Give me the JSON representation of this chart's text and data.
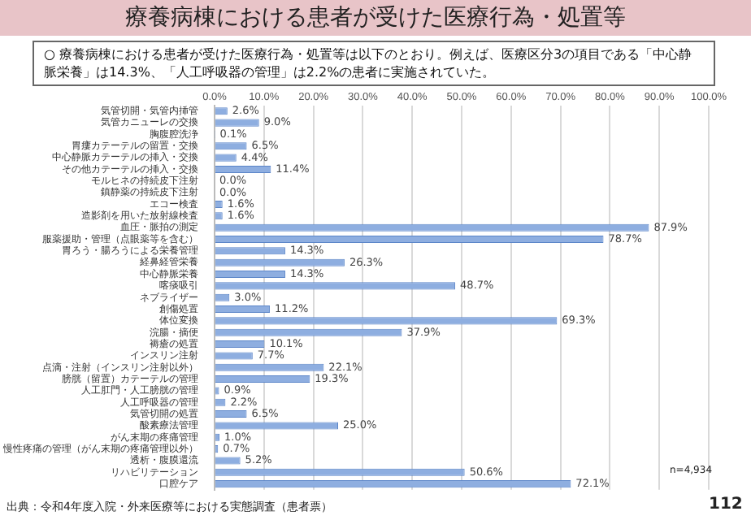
{
  "chart_data": {
    "type": "bar",
    "orientation": "horizontal",
    "title": "療養病棟における患者が受けた医療行為・処置等",
    "subtitle": "○ 療養病棟における患者が受けた医療行為・処置等は以下のとおり。例えば、医療区分3の項目である「中心静脈栄養」は14.3%、「人工呼吸器の管理」は2.2%の患者に実施されていた。",
    "categories": [
      "気管切開・気管内挿管",
      "気管カニューレの交換",
      "胸腹腔洗浄",
      "胃瘻カテーテルの留置・交換",
      "中心静脈カテーテルの挿入・交換",
      "その他カテーテルの挿入・交換",
      "モルヒネの持続皮下注射",
      "鎮静薬の持続皮下注射",
      "エコー検査",
      "造影剤を用いた放射線検査",
      "血圧・脈拍の測定",
      "服薬援助・管理（点眼薬等を含む）",
      "胃ろう・腸ろうによる栄養管理",
      "経鼻経管栄養",
      "中心静脈栄養",
      "喀痰吸引",
      "ネブライザー",
      "創傷処置",
      "体位変換",
      "浣腸・摘便",
      "褥瘡の処置",
      "インスリン注射",
      "点滴・注射（インスリン注射以外）",
      "膀胱（留置）カテーテルの管理",
      "人工肛門・人工膀胱の管理",
      "人工呼吸器の管理",
      "気管切開の処置",
      "酸素療法管理",
      "がん末期の疼痛管理",
      "慢性疼痛の管理（がん末期の疼痛管理以外）",
      "透析・腹膜還流",
      "リハビリテーション",
      "口腔ケア"
    ],
    "values": [
      2.6,
      9.0,
      0.1,
      6.5,
      4.4,
      11.4,
      0.0,
      0.0,
      1.6,
      1.6,
      87.9,
      78.7,
      14.3,
      26.3,
      14.3,
      48.7,
      3.0,
      11.2,
      69.3,
      37.9,
      10.1,
      7.7,
      22.1,
      19.3,
      0.9,
      2.2,
      6.5,
      25.0,
      1.0,
      0.7,
      5.2,
      50.6,
      72.1
    ],
    "value_labels": [
      "2.6%",
      "9.0%",
      "0.1%",
      "6.5%",
      "4.4%",
      "11.4%",
      "0.0%",
      "0.0%",
      "1.6%",
      "1.6%",
      "87.9%",
      "78.7%",
      "14.3%",
      "26.3%",
      "14.3%",
      "48.7%",
      "3.0%",
      "11.2%",
      "69.3%",
      "37.9%",
      "10.1%",
      "7.7%",
      "22.1%",
      "19.3%",
      "0.9%",
      "2.2%",
      "6.5%",
      "25.0%",
      "1.0%",
      "0.7%",
      "5.2%",
      "50.6%",
      "72.1%"
    ],
    "color": "#8eaee0",
    "xlim": [
      0,
      100
    ],
    "xticks": [
      {
        "value": 0,
        "label": "0.0%"
      },
      {
        "value": 10,
        "label": "10.0%"
      },
      {
        "value": 20,
        "label": "20.0%"
      },
      {
        "value": 30,
        "label": "30.0%"
      },
      {
        "value": 40,
        "label": "40.0%"
      },
      {
        "value": 50,
        "label": "50.0%"
      },
      {
        "value": 60,
        "label": "60.0%"
      },
      {
        "value": 70,
        "label": "70.0%"
      },
      {
        "value": 80,
        "label": "80.0%"
      },
      {
        "value": 90,
        "label": "90.0%"
      },
      {
        "value": 100,
        "label": "100.0%"
      }
    ],
    "grid": "x",
    "annotations": [
      "n=4,934",
      "出典：令和4年度入院・外来医療等における実態調査（患者票）",
      "112"
    ]
  }
}
